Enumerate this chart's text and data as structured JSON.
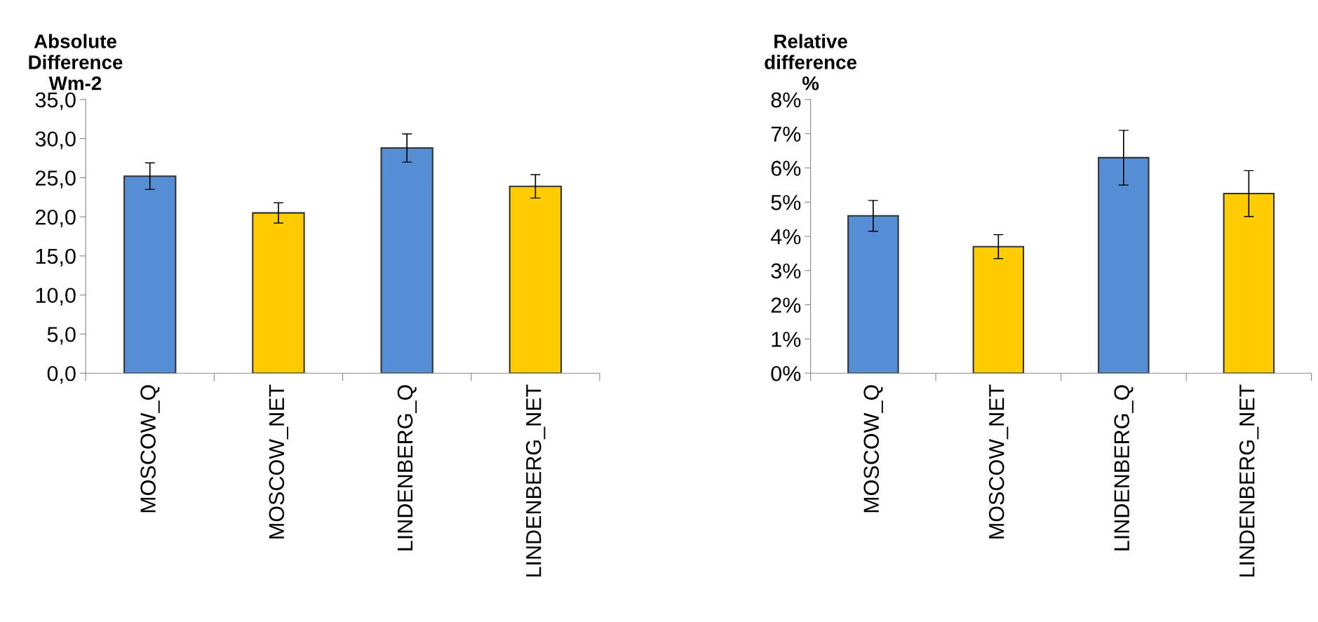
{
  "chart_data": [
    {
      "type": "bar",
      "ylabel": "Absolute\nDifference\nWm-2",
      "categories": [
        "MOSCOW_Q",
        "MOSCOW_NET",
        "LINDENBERG_Q",
        "LINDENBERG_NET"
      ],
      "values": [
        25.2,
        20.5,
        28.8,
        23.9
      ],
      "errors": [
        1.7,
        1.3,
        1.8,
        1.5
      ],
      "colors": [
        "#558ed5",
        "#ffcc00",
        "#558ed5",
        "#ffcc00"
      ],
      "ylim": [
        0,
        35
      ],
      "yticks": [
        {
          "value": 0,
          "label": "0,0"
        },
        {
          "value": 5,
          "label": "5,0"
        },
        {
          "value": 10,
          "label": "10,0"
        },
        {
          "value": 15,
          "label": "15,0"
        },
        {
          "value": 20,
          "label": "20,0"
        },
        {
          "value": 25,
          "label": "25,0"
        },
        {
          "value": 30,
          "label": "30,0"
        },
        {
          "value": 35,
          "label": "35,0"
        }
      ],
      "grid": false,
      "legend": false
    },
    {
      "type": "bar",
      "ylabel": "Relative\ndifference\n%",
      "categories": [
        "MOSCOW_Q",
        "MOSCOW_NET",
        "LINDENBERG_Q",
        "LINDENBERG_NET"
      ],
      "values": [
        4.6,
        3.7,
        6.3,
        5.25
      ],
      "errors": [
        0.45,
        0.35,
        0.8,
        0.67
      ],
      "colors": [
        "#558ed5",
        "#ffcc00",
        "#558ed5",
        "#ffcc00"
      ],
      "ylim": [
        0,
        8
      ],
      "yticks": [
        {
          "value": 0,
          "label": "0%"
        },
        {
          "value": 1,
          "label": "1%"
        },
        {
          "value": 2,
          "label": "2%"
        },
        {
          "value": 3,
          "label": "3%"
        },
        {
          "value": 4,
          "label": "4%"
        },
        {
          "value": 5,
          "label": "5%"
        },
        {
          "value": 6,
          "label": "6%"
        },
        {
          "value": 7,
          "label": "7%"
        },
        {
          "value": 8,
          "label": "8%"
        }
      ],
      "grid": false,
      "legend": false
    }
  ]
}
